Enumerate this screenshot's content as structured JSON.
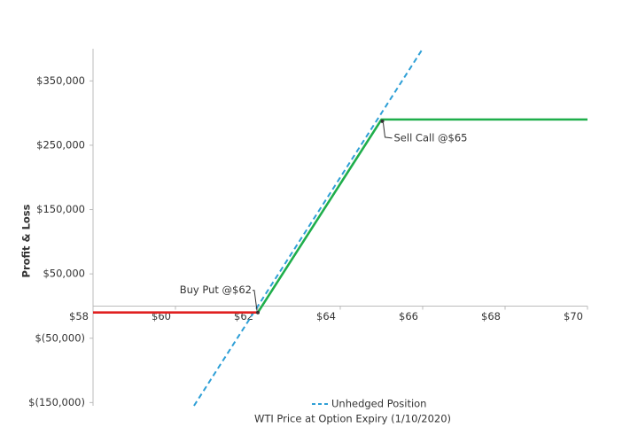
{
  "chart_data": {
    "type": "line",
    "x_label": "WTI Price at Option Expiry (1/10/2020)",
    "y_label": "Profit & Loss",
    "xlim": [
      58,
      70
    ],
    "xticks": [
      {
        "value": 58,
        "label": "$58"
      },
      {
        "value": 60,
        "label": "$60"
      },
      {
        "value": 62,
        "label": "$62"
      },
      {
        "value": 64,
        "label": "$64"
      },
      {
        "value": 66,
        "label": "$66"
      },
      {
        "value": 68,
        "label": "$68"
      },
      {
        "value": 70,
        "label": "$70"
      }
    ],
    "ylim": [
      -155000,
      400000
    ],
    "yticks": [
      {
        "value": -150000,
        "label": "$(150,000)"
      },
      {
        "value": -50000,
        "label": "$(50,000)"
      },
      {
        "value": 50000,
        "label": "$50,000"
      },
      {
        "value": 150000,
        "label": "$150,000"
      },
      {
        "value": 250000,
        "label": "$250,000"
      },
      {
        "value": 350000,
        "label": "$350,000"
      }
    ],
    "series": [
      {
        "name": "Unhedged Position",
        "color": "#2e9fd6",
        "dashed": true,
        "x": [
          60.45,
          66
        ],
        "values": [
          -155000,
          400000
        ]
      },
      {
        "color": "#e02020",
        "x": [
          58,
          62
        ],
        "values": [
          -10000,
          -10000
        ]
      },
      {
        "color": "#1fae4b",
        "x": [
          62,
          65,
          70
        ],
        "values": [
          -10000,
          290000,
          290000
        ]
      }
    ],
    "annotations": [
      {
        "text": "Buy Put @$62",
        "x": 62,
        "y": -10000
      },
      {
        "text": "Sell Call @$65",
        "x": 65,
        "y": 290000
      }
    ]
  }
}
